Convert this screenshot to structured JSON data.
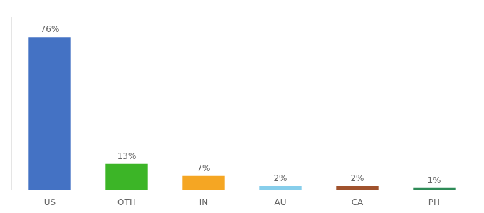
{
  "chart_data": {
    "type": "bar",
    "categories": [
      "US",
      "OTH",
      "IN",
      "AU",
      "CA",
      "PH"
    ],
    "values": [
      76,
      13,
      7,
      2,
      2,
      1
    ],
    "value_labels": [
      "76%",
      "13%",
      "7%",
      "2%",
      "2%",
      "1%"
    ],
    "colors": [
      "#4472C4",
      "#3CB527",
      "#F5A623",
      "#87CEEB",
      "#A0522D",
      "#2E8B57"
    ],
    "ylim": [
      0,
      86
    ],
    "grid": false,
    "data_labels": true,
    "tick_labels": "x"
  }
}
